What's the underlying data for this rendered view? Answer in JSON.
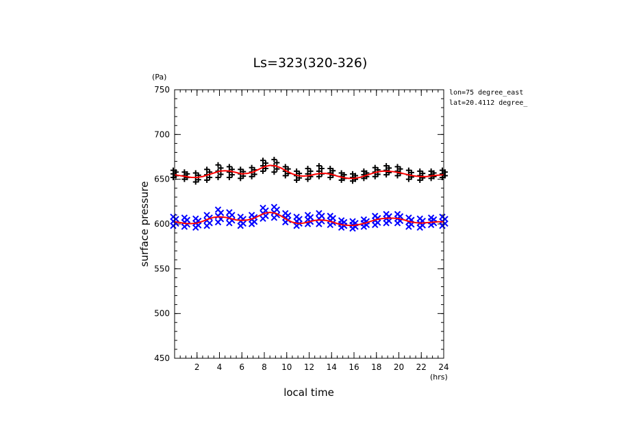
{
  "chart_data": {
    "type": "scatter",
    "title": "Ls=323(320-326)",
    "xlabel": "local time",
    "ylabel": "surface pressure",
    "x_unit": "(hrs)",
    "y_unit": "(Pa)",
    "info_lines": [
      "lon=75 degree_east",
      "lat=20.4112 degree_"
    ],
    "xlim": [
      0,
      24
    ],
    "ylim": [
      450,
      750
    ],
    "xticks": [
      2,
      4,
      6,
      8,
      10,
      12,
      14,
      16,
      18,
      20,
      22,
      24
    ],
    "yticks": [
      450,
      500,
      550,
      600,
      650,
      700,
      750
    ],
    "grid": false,
    "series": [
      {
        "marker": "plus",
        "color": "#000000",
        "x": [
          0,
          1,
          2,
          3,
          4,
          5,
          6,
          7,
          8,
          9,
          10,
          11,
          12,
          13,
          14,
          15,
          16,
          17,
          18,
          19,
          20,
          21,
          22,
          23,
          24
        ],
        "y": [
          656,
          654,
          652,
          655,
          659,
          658,
          656,
          658,
          665,
          665,
          659,
          654,
          656,
          659,
          657,
          653,
          652,
          655,
          658,
          660,
          659,
          655,
          654,
          655,
          656
        ],
        "spread": [
          4,
          4,
          5,
          6,
          7,
          6,
          5,
          5,
          6,
          7,
          5,
          5,
          6,
          6,
          5,
          4,
          4,
          4,
          5,
          5,
          5,
          5,
          5,
          4,
          4
        ]
      },
      {
        "marker": "x",
        "color": "#0000ff",
        "x": [
          0,
          1,
          2,
          3,
          4,
          5,
          6,
          7,
          8,
          9,
          10,
          11,
          12,
          13,
          14,
          15,
          16,
          17,
          18,
          19,
          20,
          21,
          22,
          23,
          24
        ],
        "y": [
          603,
          602,
          601,
          604,
          609,
          607,
          603,
          605,
          612,
          613,
          607,
          603,
          605,
          606,
          604,
          600,
          599,
          601,
          604,
          606,
          606,
          602,
          601,
          603,
          603
        ],
        "spread": [
          5,
          5,
          5,
          6,
          7,
          6,
          5,
          5,
          6,
          6,
          5,
          5,
          5,
          6,
          5,
          4,
          4,
          4,
          5,
          5,
          5,
          5,
          5,
          4,
          5
        ]
      }
    ],
    "fit_lines": [
      {
        "color": "#ff0000",
        "x": [
          0,
          0.5,
          1,
          1.5,
          2,
          2.5,
          3,
          3.5,
          4,
          4.5,
          5,
          5.5,
          6,
          6.5,
          7,
          7.5,
          8,
          8.5,
          9,
          9.5,
          10,
          10.5,
          11,
          11.5,
          12,
          12.5,
          13,
          13.5,
          14,
          14.5,
          15,
          15.5,
          16,
          16.5,
          17,
          17.5,
          18,
          18.5,
          19,
          19.5,
          20,
          20.5,
          21,
          21.5,
          22,
          22.5,
          23,
          23.5,
          24
        ],
        "y": [
          655,
          654,
          653,
          652,
          652,
          653,
          655,
          657,
          659,
          659.5,
          659,
          657.5,
          656,
          656.5,
          658,
          661,
          664,
          665.5,
          665,
          662.5,
          659,
          656,
          654,
          653.5,
          654,
          655.5,
          656.5,
          656.5,
          655.5,
          653.5,
          652,
          651,
          651,
          652,
          654,
          656,
          658,
          659,
          659,
          658.5,
          657.5,
          656,
          654.5,
          653.5,
          653,
          653,
          654,
          654.5,
          655
        ]
      },
      {
        "color": "#ff0000",
        "x": [
          0,
          0.5,
          1,
          1.5,
          2,
          2.5,
          3,
          3.5,
          4,
          4.5,
          5,
          5.5,
          6,
          6.5,
          7,
          7.5,
          8,
          8.5,
          9,
          9.5,
          10,
          10.5,
          11,
          11.5,
          12,
          12.5,
          13,
          13.5,
          14,
          14.5,
          15,
          15.5,
          16,
          16.5,
          17,
          17.5,
          18,
          18.5,
          19,
          19.5,
          20,
          20.5,
          21,
          21.5,
          22,
          22.5,
          23,
          23.5,
          24
        ],
        "y": [
          602.5,
          601.5,
          600.5,
          600.5,
          601,
          603,
          605.5,
          607.5,
          608,
          607.5,
          606,
          604.5,
          604,
          604.5,
          606,
          609,
          612,
          613,
          612,
          609,
          605,
          602,
          600.5,
          601,
          602.5,
          604,
          604.5,
          604,
          602.5,
          600.5,
          599,
          598.5,
          598.5,
          599.5,
          601,
          603,
          605,
          606,
          606.5,
          606.5,
          606,
          604.5,
          602.5,
          601.5,
          601,
          601.5,
          602,
          602.5,
          602.5
        ]
      }
    ]
  }
}
